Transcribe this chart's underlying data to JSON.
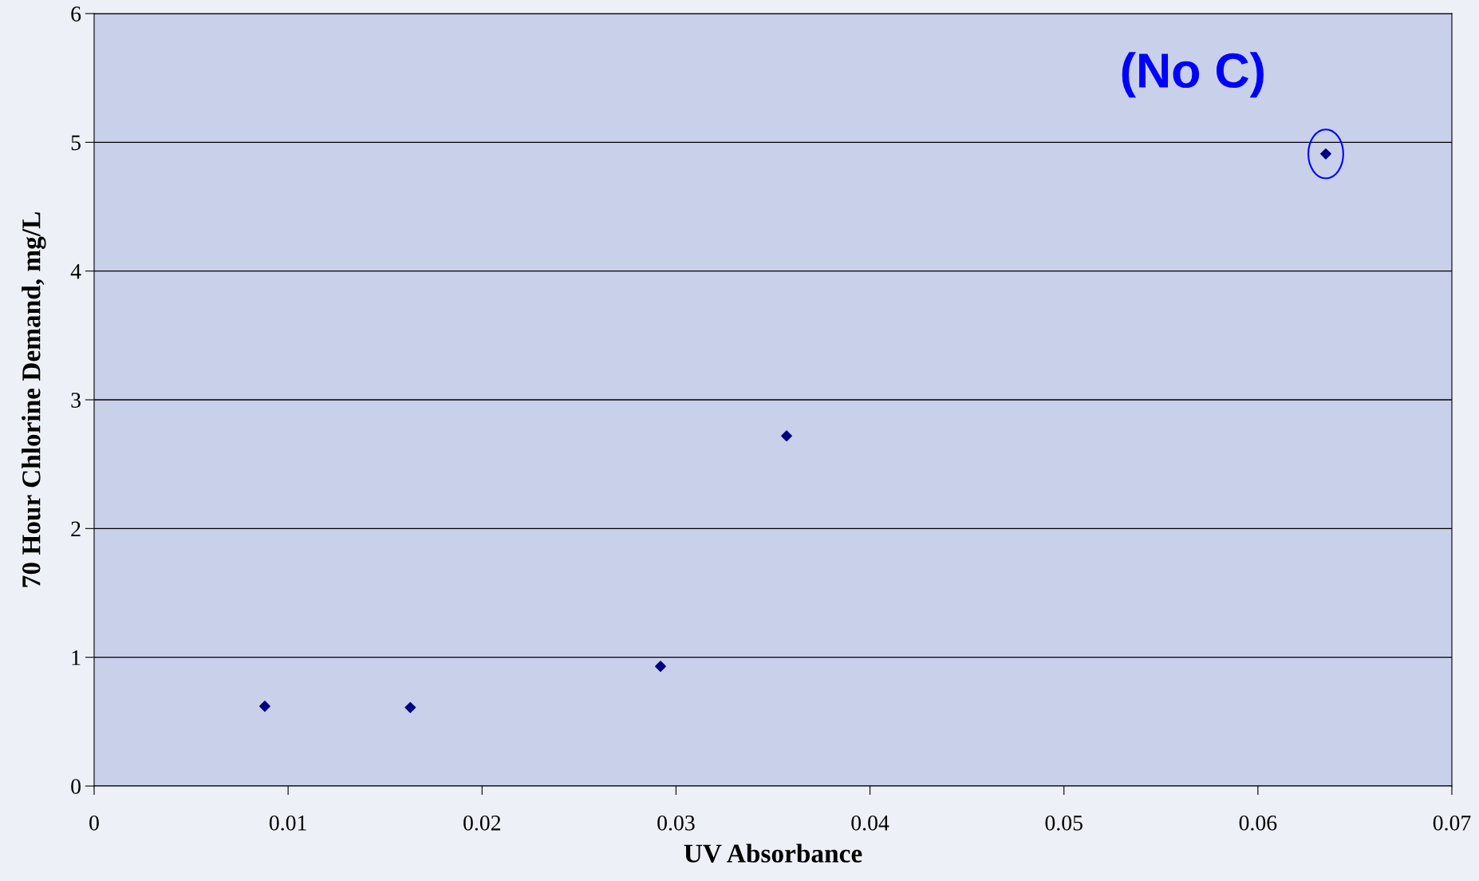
{
  "chart_data": {
    "type": "scatter",
    "xlabel": "UV Absorbance",
    "ylabel": "70 Hour Chlorine Demand, mg/L",
    "x": [
      0.0088,
      0.0163,
      0.0292,
      0.0357,
      0.0635
    ],
    "series": [
      {
        "color": "#000080",
        "values": [
          0.62,
          0.61,
          0.93,
          2.72,
          4.91
        ]
      }
    ],
    "marker": "diamond",
    "grid": "y",
    "xlim": [
      0,
      0.07
    ],
    "xticks": [
      0,
      0.01,
      0.02,
      0.03,
      0.04,
      0.05,
      0.06,
      0.07
    ],
    "ylim": [
      0,
      6
    ],
    "yticks": [
      0,
      1,
      2,
      3,
      4,
      5,
      6
    ],
    "annotations": [
      {
        "text": "(No C)",
        "x": 0.0635,
        "y": 4.91
      }
    ]
  }
}
